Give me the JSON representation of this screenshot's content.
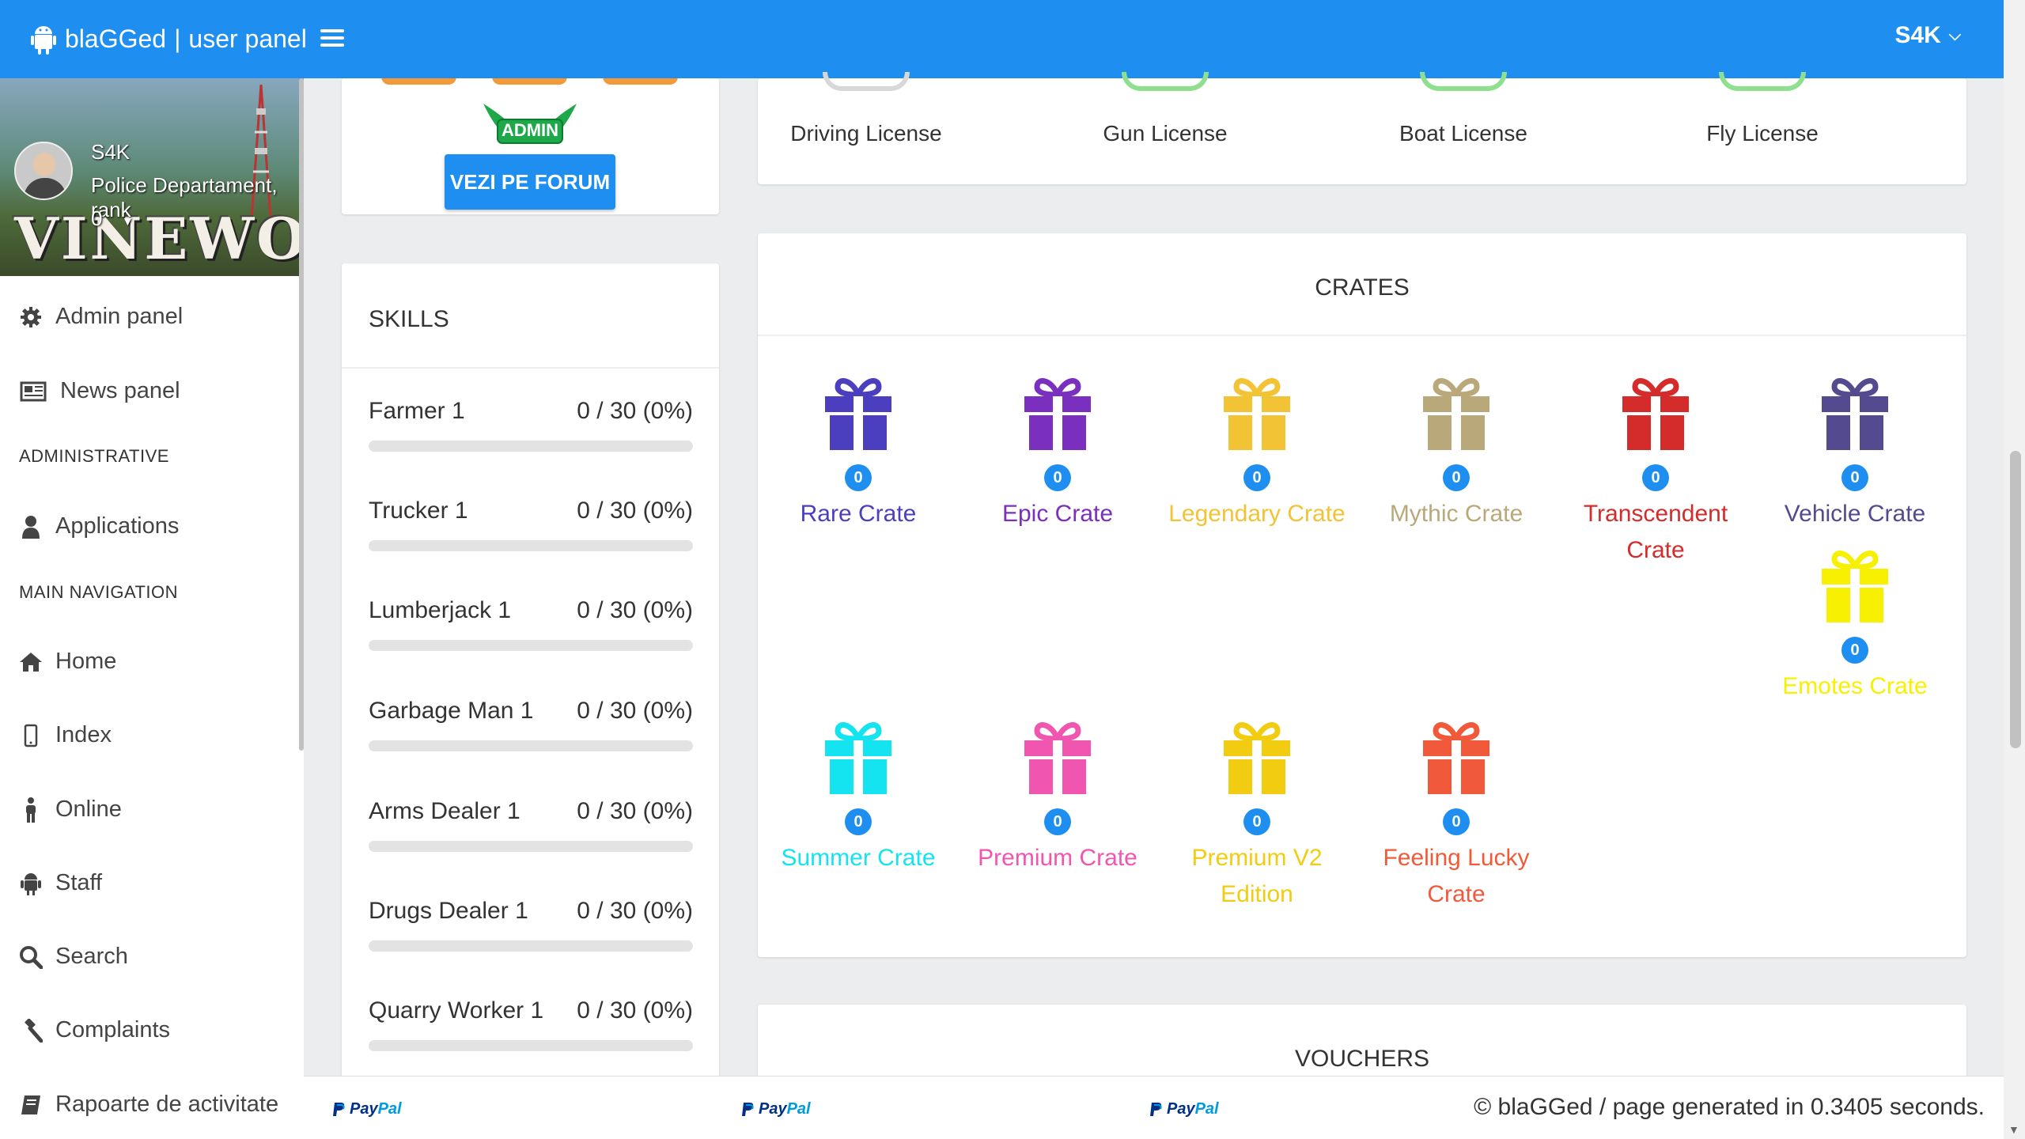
{
  "header": {
    "brand": "blaGGed",
    "separator": "|",
    "subtitle": "user panel",
    "user_menu": "S4K",
    "accent_color": "#1e8ff0"
  },
  "sidebar": {
    "user": {
      "name": "S4K",
      "department": "Police Departament, rank",
      "rank": "0",
      "banner_text": "VINEWOOD"
    },
    "items_top": [
      {
        "label": "Admin panel",
        "icon": "gear-icon"
      },
      {
        "label": "News panel",
        "icon": "newspaper-icon"
      }
    ],
    "header_administrative": "ADMINISTRATIVE",
    "items_admin": [
      {
        "label": "Applications",
        "icon": "user-icon"
      }
    ],
    "header_main": "MAIN NAVIGATION",
    "items_main": [
      {
        "label": "Home",
        "icon": "home-icon"
      },
      {
        "label": "Index",
        "icon": "mobile-icon"
      },
      {
        "label": "Online",
        "icon": "male-icon"
      },
      {
        "label": "Staff",
        "icon": "android-icon"
      },
      {
        "label": "Search",
        "icon": "search-icon"
      },
      {
        "label": "Complaints",
        "icon": "gavel-icon"
      },
      {
        "label": "Rapoarte de activitate",
        "icon": "book-icon"
      }
    ]
  },
  "forum": {
    "admin_badge": "ADMIN",
    "button_label": "VEZI PE FORUM"
  },
  "skills": {
    "title": "SKILLS",
    "items": [
      {
        "name": "Farmer 1",
        "progress": "0 / 30 (0%)",
        "fraction": 0
      },
      {
        "name": "Trucker 1",
        "progress": "0 / 30 (0%)",
        "fraction": 0
      },
      {
        "name": "Lumberjack 1",
        "progress": "0 / 30 (0%)",
        "fraction": 0
      },
      {
        "name": "Garbage Man 1",
        "progress": "0 / 30 (0%)",
        "fraction": 0
      },
      {
        "name": "Arms Dealer 1",
        "progress": "0 / 30 (0%)",
        "fraction": 0
      },
      {
        "name": "Drugs Dealer 1",
        "progress": "0 / 30 (0%)",
        "fraction": 0
      },
      {
        "name": "Quarry Worker 1",
        "progress": "0 / 30 (0%)",
        "fraction": 0
      }
    ]
  },
  "licenses": [
    {
      "label": "Driving License",
      "color": "#d8d8d8"
    },
    {
      "label": "Gun License",
      "color": "#8ee08e"
    },
    {
      "label": "Boat License",
      "color": "#8ee08e"
    },
    {
      "label": "Fly License",
      "color": "#8ee08e"
    }
  ],
  "crates": {
    "title": "CRATES",
    "items": [
      {
        "name": "Rare Crate",
        "count": "0",
        "color": "#4b3fbf"
      },
      {
        "name": "Epic Crate",
        "count": "0",
        "color": "#7b2fbf"
      },
      {
        "name": "Legendary Crate",
        "count": "0",
        "color": "#f2c335"
      },
      {
        "name": "Mythic Crate",
        "count": "0",
        "color": "#b9a97a"
      },
      {
        "name": "Transcendent Crate",
        "count": "0",
        "color": "#d42b2b"
      },
      {
        "name": "Vehicle Crate",
        "count": "0",
        "color": "#544a8f"
      },
      {
        "name": "Emotes Crate",
        "count": "0",
        "color": "#f7f000"
      },
      {
        "name": "Summer Crate",
        "count": "0",
        "color": "#14e3f0"
      },
      {
        "name": "Premium Crate",
        "count": "0",
        "color": "#f055b0"
      },
      {
        "name": "Premium V2 Edition",
        "count": "0",
        "color": "#f2cc10"
      },
      {
        "name": "Feeling Lucky Crate",
        "count": "0",
        "color": "#f05a3a"
      }
    ]
  },
  "vouchers": {
    "title": "VOUCHERS"
  },
  "footer": {
    "paypal_1": "Pay",
    "paypal_2": "Pal",
    "copyright": "© blaGGed / page generated in 0.3405 seconds."
  }
}
